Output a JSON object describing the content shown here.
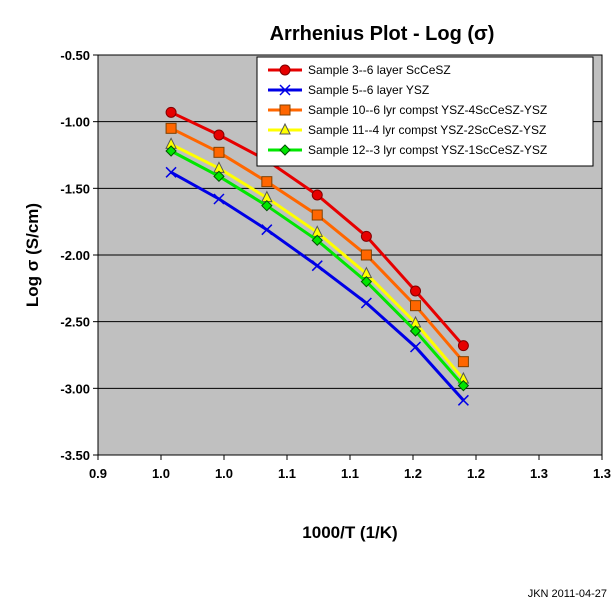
{
  "chart_data": {
    "type": "line",
    "title": "Arrhenius Plot - Log (σ)",
    "xlabel": "1000/T (1/K)",
    "ylabel": "Log σ  (S/cm)",
    "xlim": [
      0.9,
      1.3
    ],
    "ylim": [
      -3.5,
      -0.5
    ],
    "x_ticks": [
      "0.9",
      "1.0",
      "1.0",
      "1.1",
      "1.1",
      "1.2",
      "1.2",
      "1.3",
      "1.3"
    ],
    "y_ticks": [
      "-0.50",
      "-1.00",
      "-1.50",
      "-2.00",
      "-2.50",
      "-3.00",
      "-3.50"
    ],
    "grid": "horizontal major gridlines",
    "legend_position": "top-right",
    "plot_background": "#c0c0c0",
    "footnote": "JKN 2011-04-27",
    "series": [
      {
        "name": "Sample 3--6 layer ScCeSZ",
        "color": "#e60000",
        "marker": "circle",
        "x": [
          0.958,
          0.996,
          1.034,
          1.074,
          1.113,
          1.152,
          1.19
        ],
        "y": [
          -0.93,
          -1.1,
          -1.29,
          -1.55,
          -1.86,
          -2.27,
          -2.68
        ]
      },
      {
        "name": "Sample 5--6 layer YSZ",
        "color": "#0000e6",
        "marker": "x",
        "x": [
          0.958,
          0.996,
          1.034,
          1.074,
          1.113,
          1.152,
          1.19
        ],
        "y": [
          -1.38,
          -1.58,
          -1.81,
          -2.08,
          -2.36,
          -2.69,
          -3.09
        ]
      },
      {
        "name": "Sample 10--6 lyr compst YSZ-4ScCeSZ-YSZ",
        "color": "#ff6600",
        "marker": "square",
        "x": [
          0.958,
          0.996,
          1.034,
          1.074,
          1.113,
          1.152,
          1.19
        ],
        "y": [
          -1.05,
          -1.23,
          -1.45,
          -1.7,
          -2.0,
          -2.38,
          -2.8
        ]
      },
      {
        "name": "Sample 11--4 lyr compst YSZ-2ScCeSZ-YSZ",
        "color": "#ffff00",
        "marker": "triangle",
        "x": [
          0.958,
          0.996,
          1.034,
          1.074,
          1.113,
          1.152,
          1.19
        ],
        "y": [
          -1.17,
          -1.35,
          -1.57,
          -1.83,
          -2.14,
          -2.51,
          -2.93
        ]
      },
      {
        "name": "Sample 12--3 lyr compst YSZ-1ScCeSZ-YSZ",
        "color": "#00e600",
        "marker": "diamond",
        "x": [
          0.958,
          0.996,
          1.034,
          1.074,
          1.113,
          1.152,
          1.19
        ],
        "y": [
          -1.22,
          -1.41,
          -1.63,
          -1.89,
          -2.2,
          -2.57,
          -2.98
        ]
      }
    ]
  }
}
